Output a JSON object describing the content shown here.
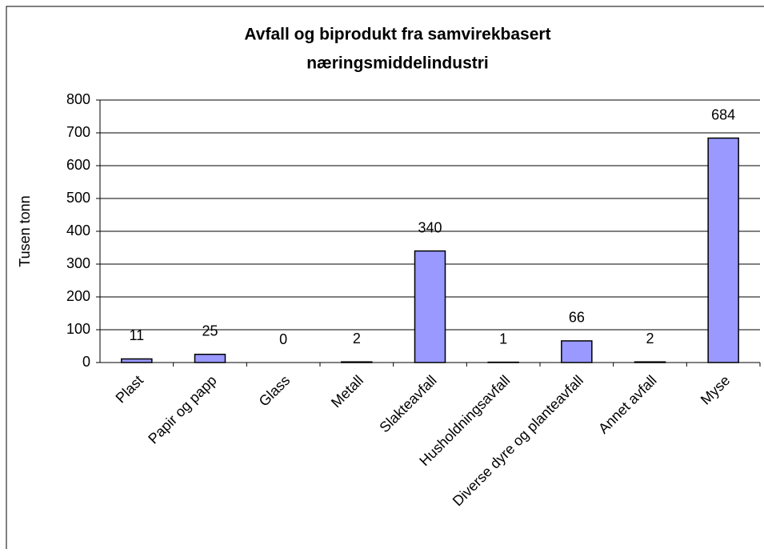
{
  "chart_data": {
    "type": "bar",
    "title": [
      "Avfall og biprodukt fra samvirekbasert",
      "næringsmiddelindustri"
    ],
    "y_label": "Tusen tonn",
    "categories": [
      "Plast",
      "Papir og papp",
      "Glass",
      "Metall",
      "Slakteavfall",
      "Husholdningsavfall",
      "Diverse dyre og planteavfall",
      "Annet avfall",
      "Myse"
    ],
    "values": [
      11,
      25,
      0,
      2,
      340,
      1,
      66,
      2,
      684
    ],
    "color": "#9999ff",
    "ylim": [
      0,
      800
    ],
    "yticks": [
      0,
      100,
      200,
      300,
      400,
      500,
      600,
      700,
      800
    ],
    "grid": true
  }
}
